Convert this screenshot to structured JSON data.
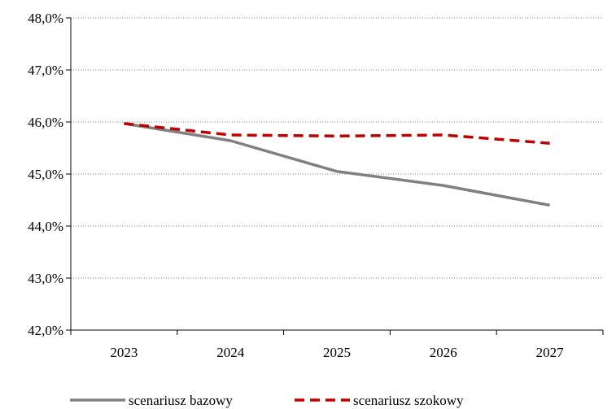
{
  "chart_data": {
    "type": "line",
    "title": "",
    "xlabel": "",
    "ylabel": "",
    "categories": [
      "2023",
      "2024",
      "2025",
      "2026",
      "2027"
    ],
    "ylim": [
      42.0,
      48.0
    ],
    "y_ticks": [
      42.0,
      43.0,
      44.0,
      45.0,
      46.0,
      47.0,
      48.0
    ],
    "y_tick_labels": [
      "42,0%",
      "43,0%",
      "44,0%",
      "45,0%",
      "46,0%",
      "47,0%",
      "48,0%"
    ],
    "grid": "horizontal dotted",
    "legend_position": "bottom",
    "series": [
      {
        "name": "scenariusz bazowy",
        "values": [
          45.97,
          45.64,
          45.05,
          44.78,
          44.4
        ],
        "color": "#808080",
        "style": "solid"
      },
      {
        "name": "scenariusz szokowy",
        "values": [
          45.97,
          45.75,
          45.73,
          45.75,
          45.59
        ],
        "color": "#c00000",
        "style": "dashed"
      }
    ]
  }
}
